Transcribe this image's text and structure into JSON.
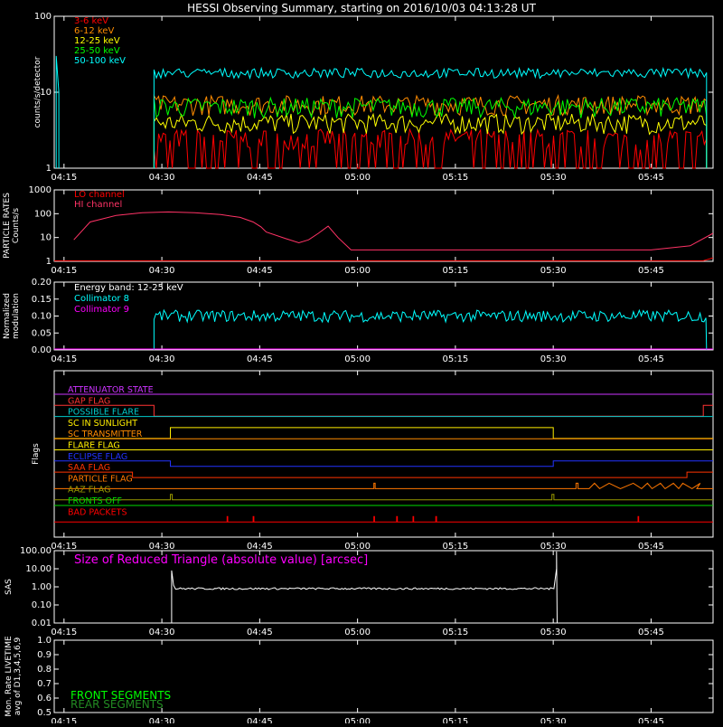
{
  "title": "HESSI Observing Summary, starting on 2016/10/03 04:13:28 UT",
  "time_ticks": [
    "04:15",
    "04:30",
    "04:45",
    "05:00",
    "05:15",
    "05:30",
    "05:45"
  ],
  "colors": {
    "bg": "#000000",
    "axis": "#ffffff"
  },
  "chart_data": [
    {
      "type": "line",
      "name": "count-rates",
      "ylabel": "counts/s/detector",
      "yscale": "log",
      "ylim": [
        1,
        100
      ],
      "yticks": [
        "1",
        "10",
        "100"
      ],
      "xlim_min": [
        1.5,
        99.5
      ],
      "data_gap_min": [
        0,
        13.8
      ],
      "series": [
        {
          "name": "3-6 keV",
          "color": "#ff0000",
          "level": 2.5
        },
        {
          "name": "6-12 keV",
          "color": "#ff8c00",
          "level": 7
        },
        {
          "name": "12-25 keV",
          "color": "#ffff00",
          "level": 4
        },
        {
          "name": "25-50 keV",
          "color": "#00ff00",
          "level": 6.5
        },
        {
          "name": "50-100 keV",
          "color": "#00ffff",
          "level": 18
        }
      ]
    },
    {
      "type": "line",
      "name": "particle-rates",
      "ylabel": "PARTICLE RATES Counts/s",
      "yscale": "log",
      "ylim": [
        1,
        1000
      ],
      "yticks": [
        "1",
        "10",
        "100",
        "1000"
      ],
      "series": [
        {
          "name": "LO channel",
          "color": "#ff0000"
        },
        {
          "name": "HI channel",
          "color": "#ff3366",
          "x": [
            1.5,
            4,
            8,
            12,
            16,
            20,
            24,
            27,
            29,
            30.2,
            31,
            34,
            36,
            37.5,
            39,
            40.5,
            42,
            44,
            50,
            70,
            90,
            96,
            99.5
          ],
          "y": [
            8,
            45,
            85,
            110,
            118,
            110,
            92,
            70,
            45,
            28,
            17,
            9,
            6,
            8,
            15,
            30,
            10,
            3,
            3,
            3,
            3,
            4.5,
            15
          ]
        }
      ]
    },
    {
      "type": "line",
      "name": "modulation",
      "ylabel": "Normalized modulation",
      "annotation": "Energy band: 12-25 keV",
      "ylim": [
        0,
        0.2
      ],
      "yticks": [
        "0.00",
        "0.05",
        "0.10",
        "0.15",
        "0.20"
      ],
      "series": [
        {
          "name": "Collimator 8",
          "color": "#00ffff",
          "level": 0.1
        },
        {
          "name": "Collimator 9",
          "color": "#ff00ff",
          "level": 0
        }
      ]
    },
    {
      "type": "line",
      "name": "flags",
      "ylabel": "Flags",
      "flags": [
        {
          "name": "ATTENUATOR STATE",
          "color": "#cc33ff"
        },
        {
          "name": "GAP FLAG",
          "color": "#ff3333"
        },
        {
          "name": "POSSIBLE FLARE",
          "color": "#00cccc"
        },
        {
          "name": "SC IN SUNLIGHT",
          "color": "#ffee00"
        },
        {
          "name": "SC TRANSMITTER",
          "color": "#ff8c00"
        },
        {
          "name": "FLARE FLAG",
          "color": "#ffee00"
        },
        {
          "name": "ECLIPSE FLAG",
          "color": "#2233ff"
        },
        {
          "name": "SAA FLAG",
          "color": "#ff3300"
        },
        {
          "name": "PARTICLE FLAG",
          "color": "#ff7700"
        },
        {
          "name": "AAZ FLAG",
          "color": "#999900"
        },
        {
          "name": "FRONTS OFF",
          "color": "#00dd00"
        },
        {
          "name": "BAD PACKETS",
          "color": "#ff0000"
        }
      ]
    },
    {
      "type": "line",
      "name": "sas",
      "ylabel": "SAS",
      "annotation": "Size of Reduced Triangle (absolute value) [arcsec]",
      "annotation_color": "#ff00ff",
      "yscale": "log",
      "ylim": [
        0.01,
        100
      ],
      "yticks": [
        "0.01",
        "0.10",
        "1.00",
        "10.00",
        "100.00"
      ],
      "series": [
        {
          "name": "",
          "color": "#ffffff",
          "level": 0.8,
          "x_range_min": [
            16.5,
            75.5
          ]
        }
      ]
    },
    {
      "type": "line",
      "name": "livetime",
      "ylabel": "Mon. Rate LIVETIME avg of D1,3,4,5,6,9",
      "ylim": [
        0.5,
        1.0
      ],
      "yticks": [
        "0.5",
        "0.6",
        "0.7",
        "0.8",
        "0.9",
        "1.0"
      ],
      "series": [
        {
          "name": "FRONT SEGMENTS",
          "color": "#00ff00"
        },
        {
          "name": "REAR SEGMENTS",
          "color": "#228b22"
        }
      ]
    }
  ]
}
